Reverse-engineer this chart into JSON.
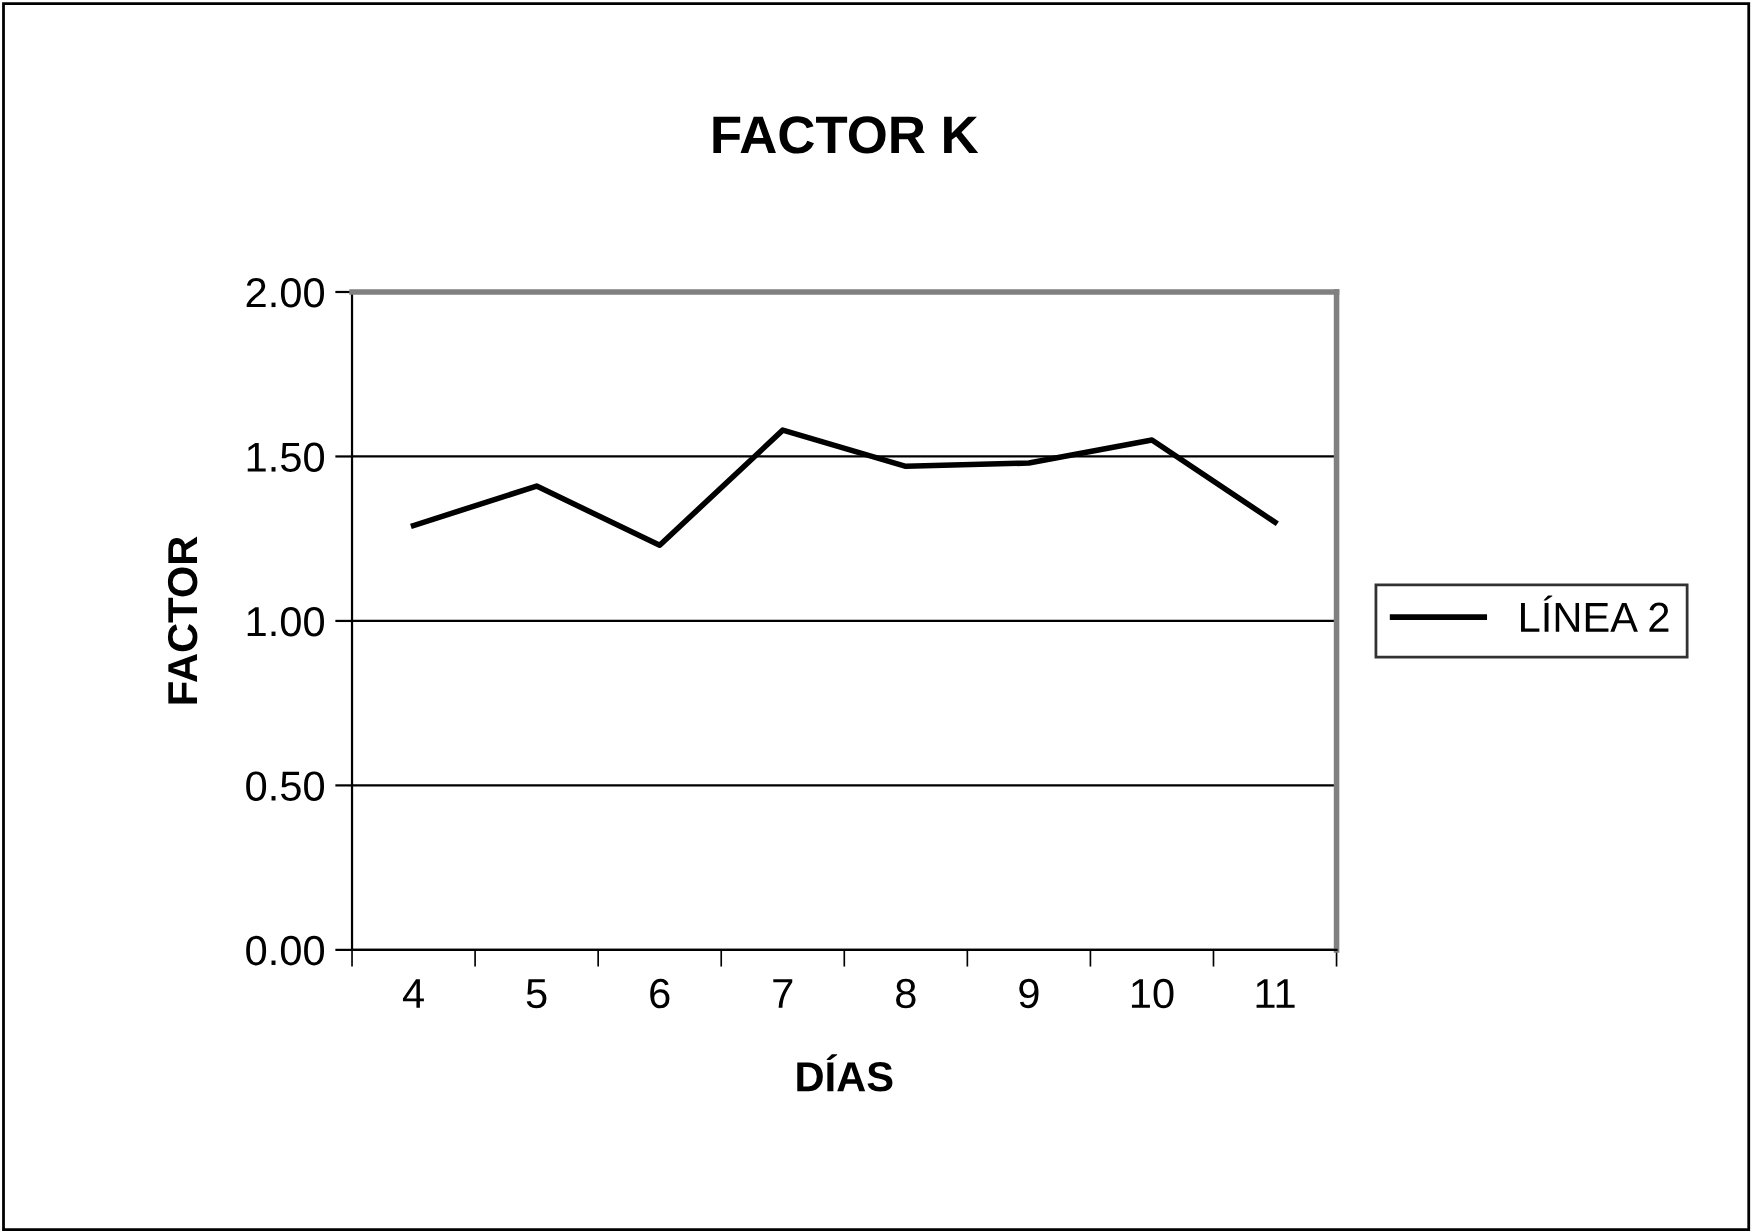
{
  "chart_data": {
    "type": "line",
    "title": "FACTOR K",
    "xlabel": "DÍAS",
    "ylabel": "FACTOR",
    "categories": [
      "4",
      "5",
      "6",
      "7",
      "8",
      "9",
      "10",
      "11"
    ],
    "series": [
      {
        "name": "LÍNEA 2",
        "color": "#000000",
        "values": [
          1.29,
          1.41,
          1.23,
          1.58,
          1.47,
          1.48,
          1.55,
          1.3
        ]
      }
    ],
    "ylim": [
      0,
      2
    ],
    "yticks": [
      {
        "value": 0,
        "label": "0.00"
      },
      {
        "value": 0.5,
        "label": "0.50"
      },
      {
        "value": 1,
        "label": "1.00"
      },
      {
        "value": 1.5,
        "label": "1.50"
      },
      {
        "value": 2,
        "label": "2.00"
      }
    ],
    "grid": "y",
    "legend": "right",
    "marker": "none",
    "line_style": "solid"
  }
}
